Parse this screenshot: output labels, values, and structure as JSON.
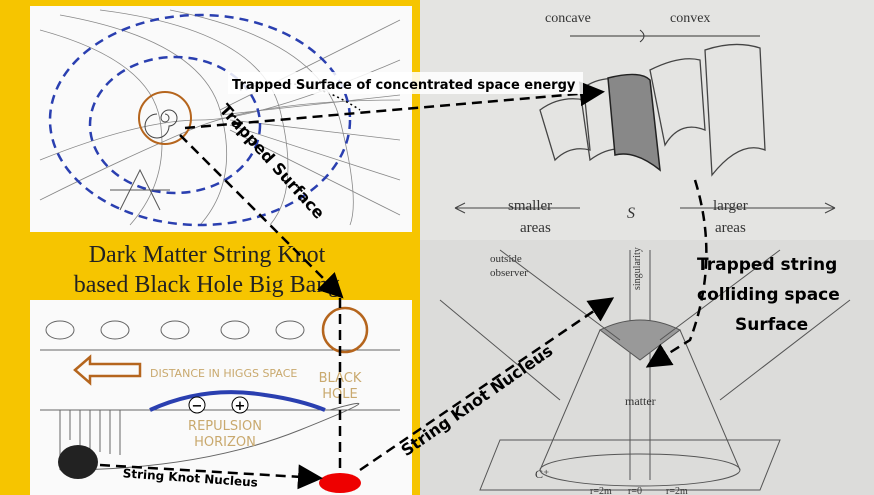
{
  "title": {
    "line1": "Dark Matter String Knot",
    "line2": "based Black Hole Big Bang"
  },
  "callouts": {
    "trapped_surface_energy": "Trapped Surface of  concentrated space energy",
    "trapped_surface": "Trapped Surface",
    "trapped_string": [
      "Trapped string",
      "colliding space",
      "Surface"
    ],
    "nucleus_center": "String Knot Nucleus",
    "nucleus_bottom": "String Knot Nucleus"
  },
  "higgs_diagram": {
    "distance": "DISTANCE IN HIGGS SPACE",
    "black_hole": [
      "BLACK",
      "HOLE"
    ],
    "repulsion": [
      "REPULSION",
      "HORIZON"
    ],
    "minus": "−",
    "plus": "+"
  },
  "surface_diagram": {
    "concave": "concave",
    "convex": "convex",
    "smaller": [
      "smaller",
      "areas"
    ],
    "larger": [
      "larger",
      "areas"
    ],
    "symbol": "S"
  },
  "cone_diagram": {
    "observer": [
      "outside",
      "observer"
    ],
    "matter": "matter",
    "singularity": "singularity",
    "c_plus": "C⁺",
    "r_left": "r=2m",
    "r_center": "r=0",
    "r_right": "r=2m"
  }
}
